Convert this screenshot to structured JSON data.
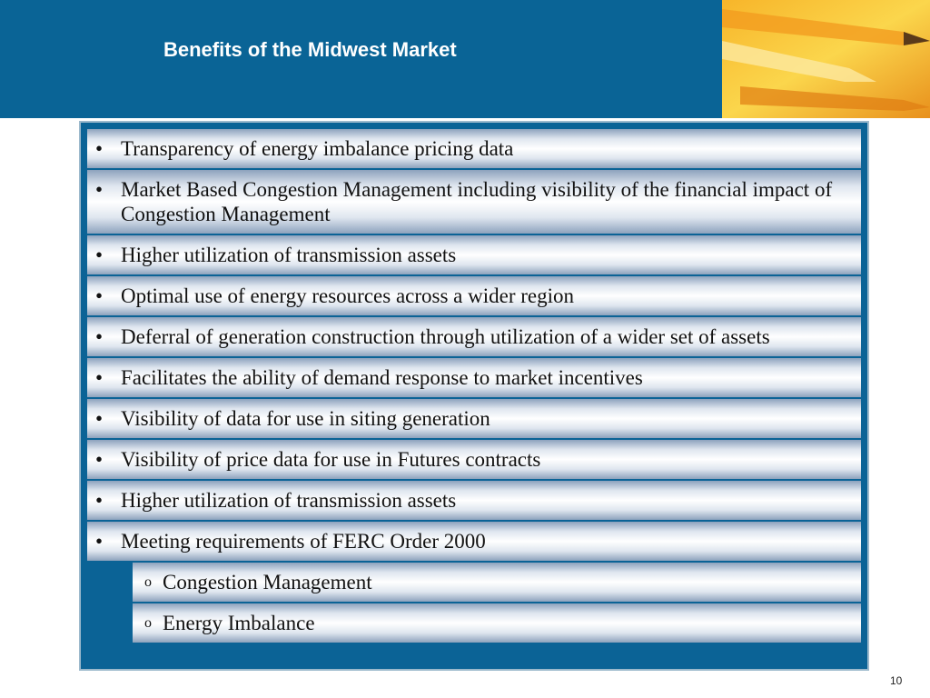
{
  "header": {
    "title": "Benefits of the Midwest Market"
  },
  "bullet": "•",
  "sub_bullet": "o",
  "items": [
    "Transparency of energy imbalance pricing data",
    "Market Based Congestion Management including visibility of the financial impact of Congestion Management",
    "Higher utilization of transmission assets",
    "Optimal use of energy resources across a wider region",
    "Deferral of generation construction through utilization of a wider set of assets",
    "Facilitates the ability of demand response to market incentives",
    "Visibility of data for use in siting generation",
    "Visibility of price data for use in Futures contracts",
    "Higher utilization of transmission assets",
    "Meeting requirements of FERC Order 2000"
  ],
  "sub_items": [
    "Congestion Management",
    "Energy Imbalance"
  ],
  "footer": {
    "page_number": "10"
  }
}
